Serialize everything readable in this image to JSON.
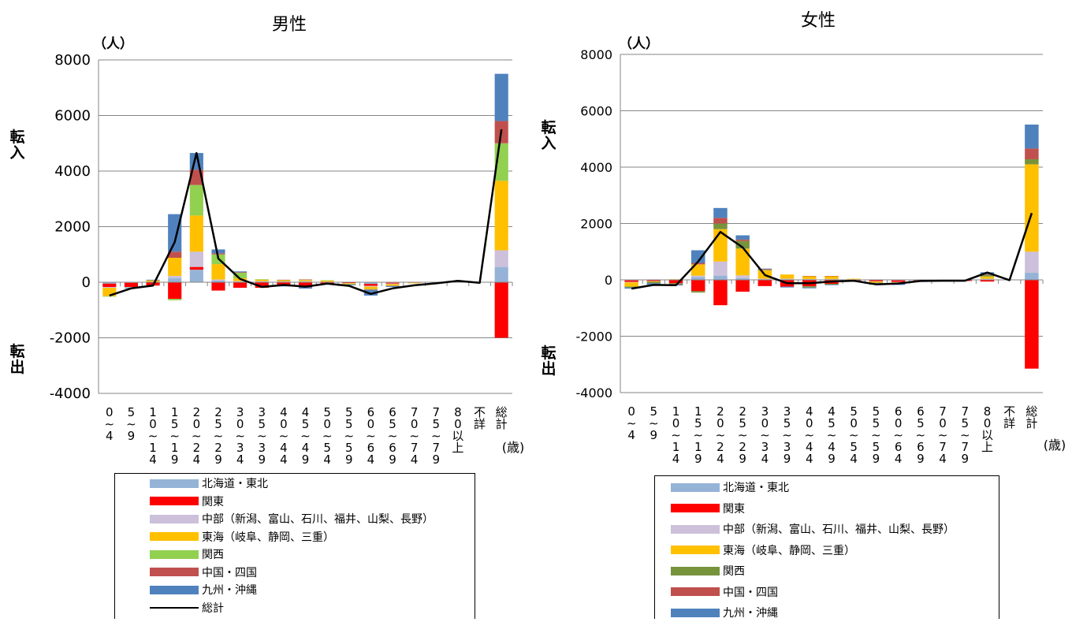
{
  "colors": {
    "hokkaido": "#95b3d7",
    "kanto": "#ff0000",
    "chubu": "#ccc0da",
    "tokai": "#ffc000",
    "kansai_male": "#92d050",
    "kansai_female": "#77933c",
    "chugoku": "#c0504d",
    "kyushu": "#4f81bd",
    "total_line": "#000000"
  },
  "chart_data": [
    {
      "type": "bar",
      "title": "男性",
      "y_unit": "（人）",
      "x_unit": "(歳)",
      "inflow_label": "転入",
      "outflow_label": "転出",
      "ylim": [
        -4000,
        8000
      ],
      "yticks": [
        8000,
        6000,
        4000,
        2000,
        0,
        -2000,
        -4000
      ],
      "grid": true,
      "legend_position": "bottom",
      "categories": [
        "0~4",
        "5~9",
        "10~14",
        "15~19",
        "20~24",
        "25~29",
        "30~34",
        "35~39",
        "40~44",
        "45~49",
        "50~54",
        "55~59",
        "60~64",
        "65~69",
        "70~74",
        "75~79",
        "80以上",
        "不詳",
        "総計"
      ],
      "series": [
        {
          "name": "北海道・東北",
          "key": "hokkaido",
          "values": [
            -50,
            -20,
            10,
            150,
            450,
            60,
            20,
            20,
            10,
            20,
            10,
            -10,
            -60,
            -20,
            0,
            0,
            0,
            0,
            550
          ]
        },
        {
          "name": "関東",
          "key": "kanto",
          "values": [
            -120,
            -150,
            -120,
            -600,
            100,
            -300,
            -200,
            -200,
            -120,
            -180,
            -50,
            -20,
            -70,
            -30,
            -20,
            -10,
            0,
            0,
            -2000
          ]
        },
        {
          "name": "中部（新潟、富山、石川、福井、山梨、長野）",
          "key": "chubu",
          "values": [
            -30,
            -20,
            10,
            80,
            550,
            40,
            20,
            20,
            20,
            20,
            10,
            -10,
            -30,
            -20,
            0,
            0,
            0,
            0,
            600
          ]
        },
        {
          "name": "東海（岐阜、静岡、三重）",
          "key": "tokai",
          "values": [
            -300,
            0,
            40,
            650,
            1300,
            550,
            100,
            50,
            40,
            40,
            40,
            -30,
            -80,
            -50,
            -20,
            0,
            0,
            0,
            2500
          ]
        },
        {
          "name": "関西",
          "key": "kansai",
          "values": [
            -20,
            -10,
            10,
            -50,
            1100,
            350,
            200,
            20,
            10,
            10,
            10,
            -10,
            -20,
            -10,
            0,
            0,
            0,
            0,
            1350
          ]
        },
        {
          "name": "中国・四国",
          "key": "chugoku",
          "values": [
            0,
            0,
            10,
            220,
            550,
            40,
            20,
            0,
            10,
            10,
            0,
            0,
            -20,
            -10,
            0,
            0,
            0,
            0,
            800
          ]
        },
        {
          "name": "九州・沖縄",
          "key": "kyushu",
          "values": [
            0,
            -20,
            10,
            1350,
            600,
            140,
            30,
            0,
            -30,
            -50,
            0,
            -30,
            -200,
            -30,
            0,
            0,
            0,
            0,
            1700
          ]
        }
      ],
      "total": {
        "name": "総計",
        "values": [
          -480,
          -220,
          -120,
          1450,
          4650,
          850,
          120,
          -170,
          -100,
          -160,
          -50,
          -130,
          -420,
          -220,
          -110,
          -40,
          50,
          -20,
          5500
        ]
      },
      "legend_show": [
        "hokkaido",
        "kanto",
        "chubu",
        "tokai",
        "kansai",
        "chugoku",
        "kyushu",
        "total"
      ]
    },
    {
      "type": "bar",
      "title": "女性",
      "y_unit": "（人）",
      "x_unit": "(歳)",
      "inflow_label": "転入",
      "outflow_label": "転出",
      "ylim": [
        -4000,
        8000
      ],
      "yticks": [
        8000,
        6000,
        4000,
        2000,
        0,
        -2000,
        -4000
      ],
      "grid": true,
      "legend_position": "bottom",
      "categories": [
        "0~4",
        "5~9",
        "10~14",
        "15~19",
        "20~24",
        "25~29",
        "30~34",
        "35~39",
        "40~44",
        "45~49",
        "50~54",
        "55~59",
        "60~64",
        "65~69",
        "70~74",
        "75~79",
        "80以上",
        "不詳",
        "総計"
      ],
      "series": [
        {
          "name": "北海道・東北",
          "key": "hokkaido",
          "values": [
            -20,
            -10,
            0,
            100,
            150,
            60,
            10,
            20,
            20,
            10,
            10,
            -10,
            -20,
            -10,
            0,
            0,
            20,
            0,
            250
          ]
        },
        {
          "name": "関東",
          "key": "kanto",
          "values": [
            -50,
            -30,
            -120,
            -400,
            -900,
            -420,
            -220,
            -240,
            -230,
            -140,
            -40,
            -40,
            -50,
            -20,
            -20,
            -40,
            -60,
            0,
            -3150
          ]
        },
        {
          "name": "中部（新潟、富山、石川、福井、山梨、長野）",
          "key": "chubu",
          "values": [
            -20,
            -10,
            0,
            50,
            500,
            100,
            30,
            20,
            10,
            20,
            10,
            -10,
            -20,
            -10,
            0,
            0,
            20,
            0,
            750
          ]
        },
        {
          "name": "東海（岐阜、静岡、三重）",
          "key": "tokai",
          "values": [
            -150,
            -20,
            20,
            400,
            1150,
            950,
            300,
            150,
            100,
            100,
            20,
            -40,
            -20,
            -10,
            0,
            0,
            80,
            0,
            3100
          ]
        },
        {
          "name": "関西",
          "key": "kansai",
          "values": [
            -30,
            -50,
            -30,
            -50,
            200,
            270,
            20,
            0,
            -40,
            -30,
            -10,
            -20,
            -20,
            -10,
            0,
            0,
            50,
            0,
            180
          ]
        },
        {
          "name": "中国・四国",
          "key": "chugoku",
          "values": [
            0,
            0,
            -20,
            50,
            200,
            50,
            20,
            0,
            10,
            10,
            0,
            0,
            -10,
            0,
            0,
            0,
            20,
            0,
            380
          ]
        },
        {
          "name": "九州・沖縄",
          "key": "kyushu",
          "values": [
            -40,
            -50,
            -30,
            450,
            350,
            150,
            20,
            -30,
            -30,
            -20,
            0,
            -50,
            -40,
            -10,
            0,
            0,
            80,
            0,
            850
          ]
        }
      ],
      "total": {
        "name": "総計",
        "values": [
          -310,
          -180,
          -190,
          650,
          1700,
          1150,
          170,
          -120,
          -120,
          -60,
          -30,
          -160,
          -130,
          -40,
          -30,
          -30,
          260,
          -10,
          2370
        ]
      },
      "legend_show": [
        "hokkaido",
        "kanto",
        "chubu",
        "tokai",
        "kansai",
        "chugoku",
        "kyushu"
      ]
    }
  ]
}
